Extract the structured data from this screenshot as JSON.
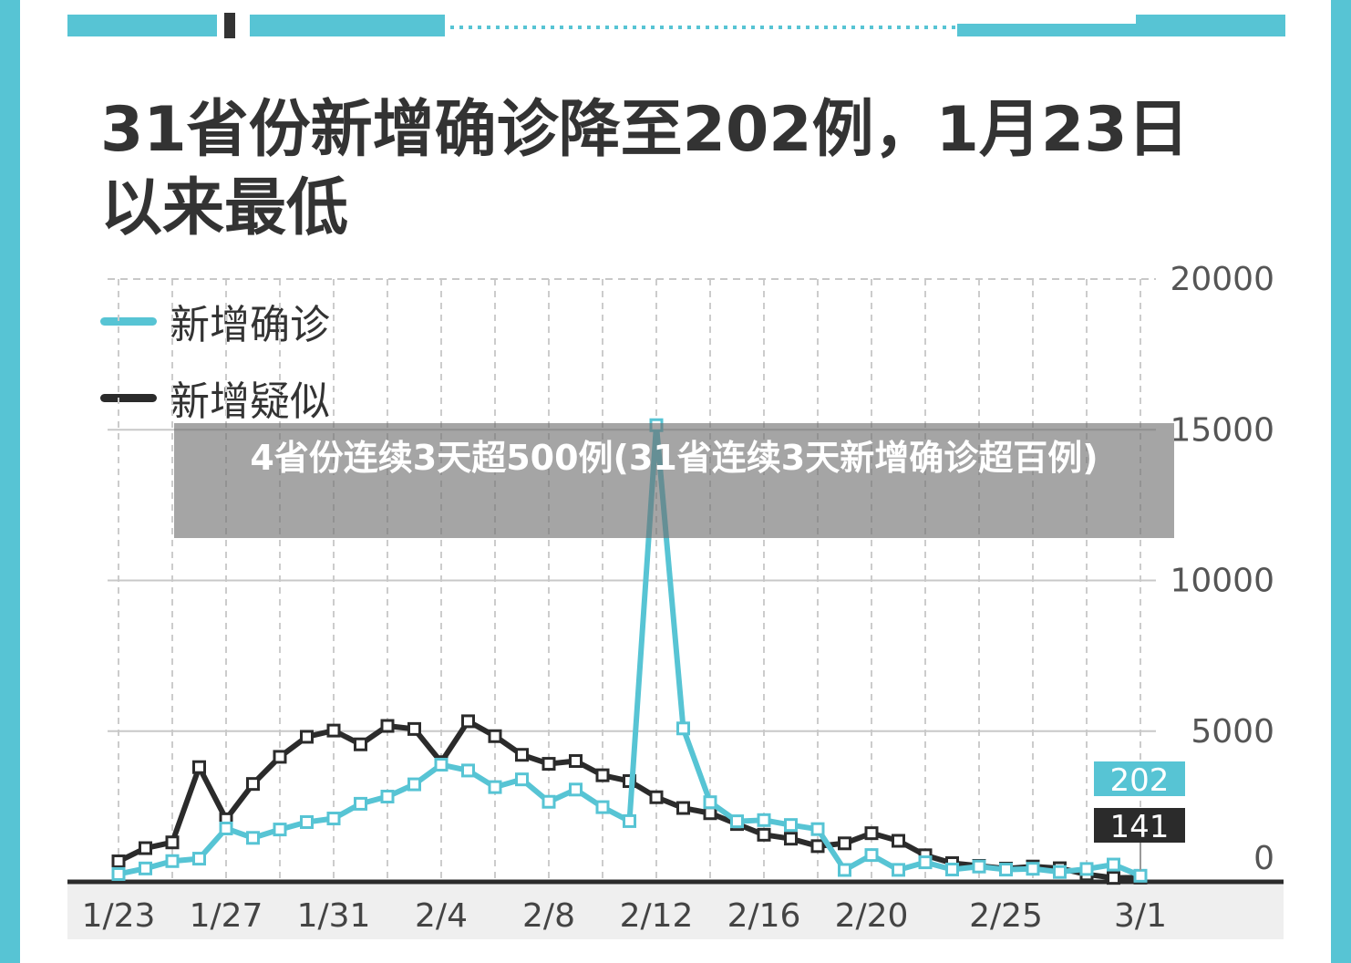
{
  "title": "31省份新增确诊降至202例，1月23日以来最低",
  "overlay_caption": "4省份连续3天超500例(31省连续3天新增确诊超百例)",
  "colors": {
    "confirmed": "#57c4d4",
    "suspected": "#2b2b2b",
    "frame": "#57c4d4",
    "grid": "#c8c8c8"
  },
  "chart_data": {
    "type": "line",
    "title": "31省份新增确诊降至202例，1月23日以来最低",
    "x_tick_labels": [
      "1/23",
      "1/27",
      "1/31",
      "2/4",
      "2/8",
      "2/12",
      "2/16",
      "2/20",
      "2/25",
      "3/1"
    ],
    "x_tick_day_index": [
      0,
      4,
      8,
      12,
      16,
      20,
      24,
      28,
      33,
      38
    ],
    "y_tick_labels": [
      "0",
      "5000",
      "10000",
      "15000",
      "20000"
    ],
    "ylim": [
      0,
      20000
    ],
    "y_axis_side": "right",
    "grid": true,
    "legend_position": "top-left",
    "end_labels": {
      "confirmed": "202",
      "suspected": "141"
    },
    "x": [
      "1/23",
      "1/24",
      "1/25",
      "1/26",
      "1/27",
      "1/28",
      "1/29",
      "1/30",
      "1/31",
      "2/1",
      "2/2",
      "2/3",
      "2/4",
      "2/5",
      "2/6",
      "2/7",
      "2/8",
      "2/9",
      "2/10",
      "2/11",
      "2/12",
      "2/13",
      "2/14",
      "2/15",
      "2/16",
      "2/17",
      "2/18",
      "2/19",
      "2/20",
      "2/21",
      "2/22",
      "2/23",
      "2/24",
      "2/25",
      "2/26",
      "2/27",
      "2/28",
      "2/29",
      "3/1"
    ],
    "series": [
      {
        "name": "新增确诊",
        "key": "confirmed",
        "values": [
          259,
          444,
          688,
          769,
          1771,
          1459,
          1737,
          1982,
          2102,
          2590,
          2829,
          3235,
          3887,
          3694,
          3143,
          3399,
          2656,
          3062,
          2478,
          2015,
          15152,
          5090,
          2641,
          2009,
          2048,
          1886,
          1749,
          394,
          889,
          397,
          648,
          409,
          508,
          406,
          433,
          327,
          427,
          573,
          202
        ]
      },
      {
        "name": "新增疑似",
        "key": "suspected",
        "values": [
          680,
          1118,
          1309,
          3806,
          2077,
          3248,
          4148,
          4812,
          5019,
          4562,
          5173,
          5072,
          3971,
          5328,
          4833,
          4214,
          3916,
          4008,
          3536,
          3342,
          2807,
          2450,
          2277,
          1918,
          1563,
          1432,
          1185,
          1277,
          1614,
          1361,
          882,
          620,
          530,
          439,
          508,
          452,
          248,
          132,
          141
        ]
      }
    ]
  }
}
